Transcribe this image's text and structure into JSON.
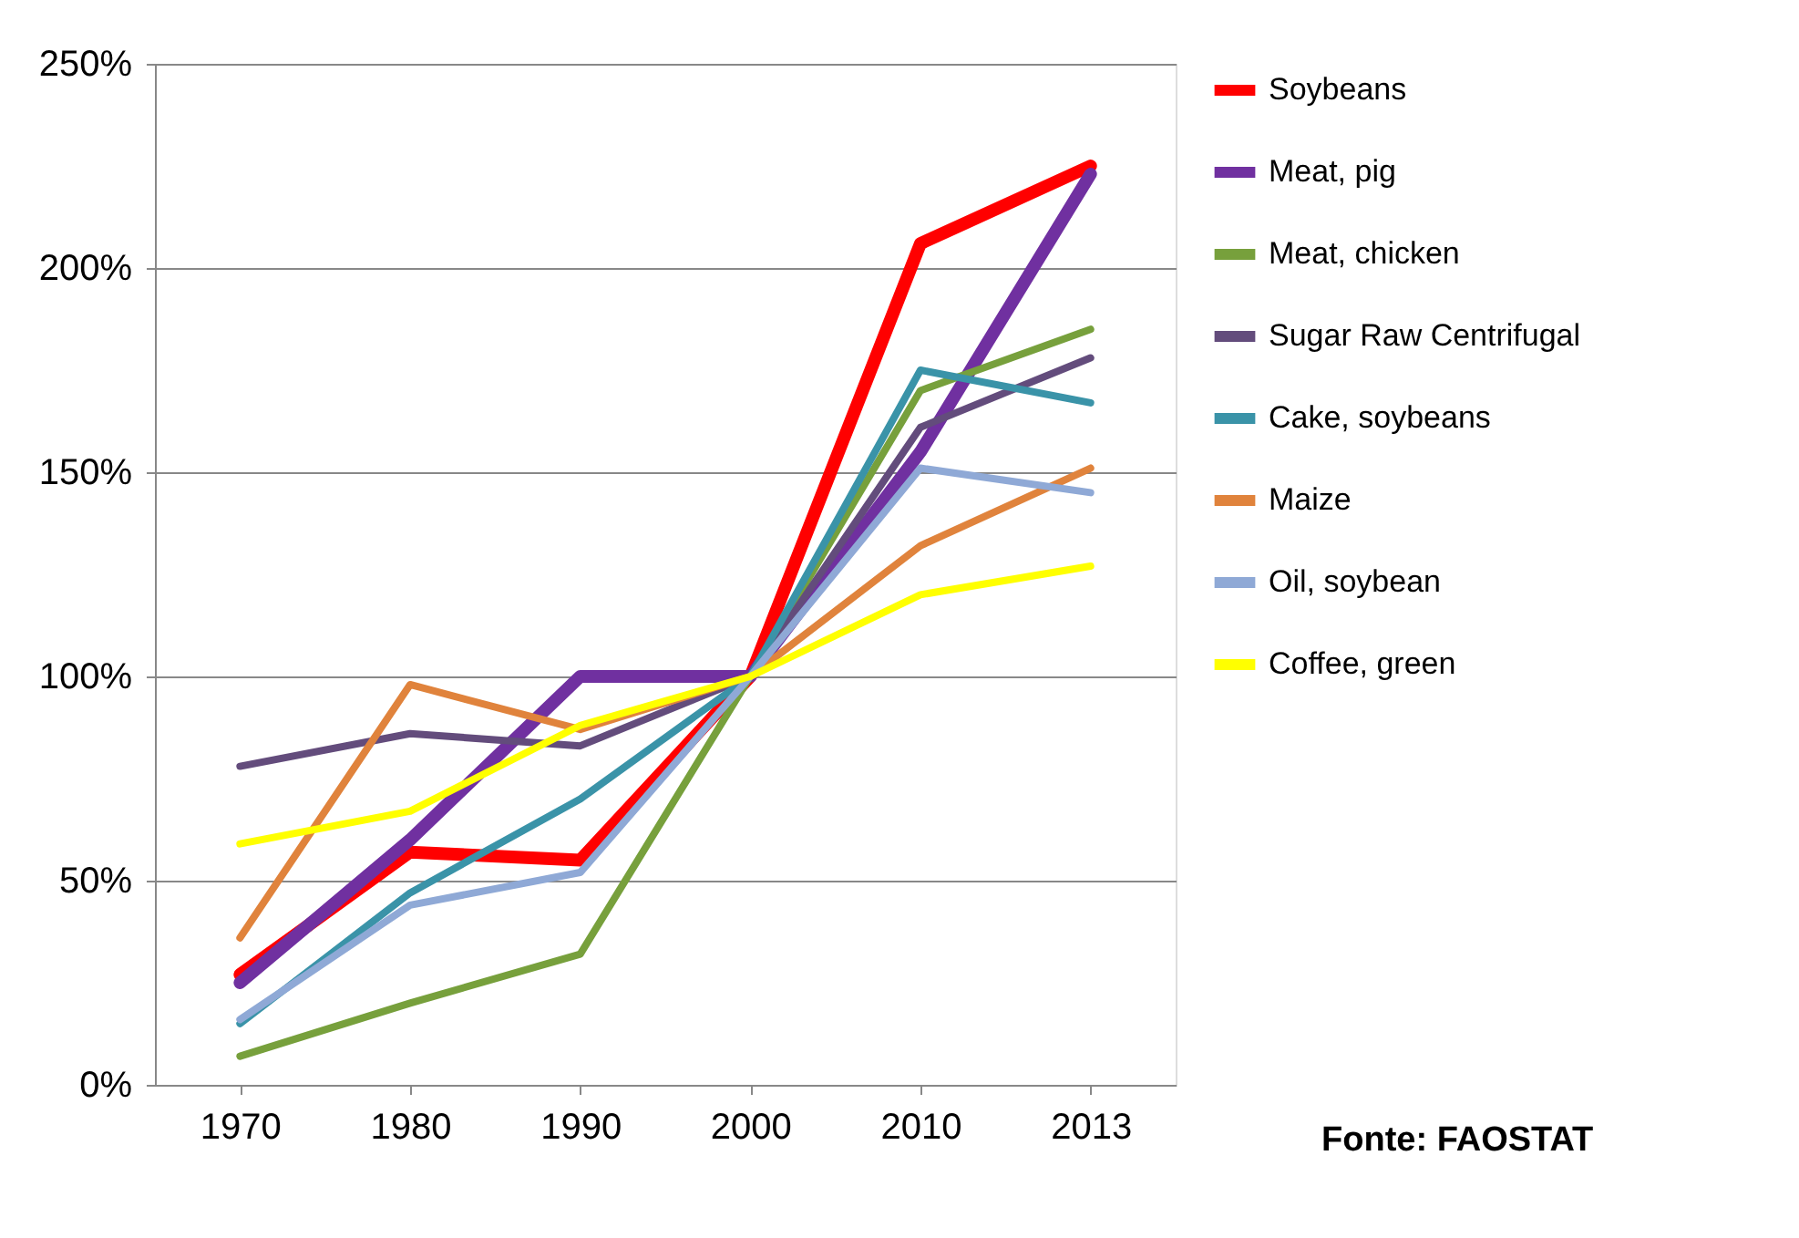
{
  "chart_data": {
    "type": "line",
    "categories": [
      "1970",
      "1980",
      "1990",
      "2000",
      "2010",
      "2013"
    ],
    "ylim": [
      0,
      250
    ],
    "yticks": [
      {
        "value": 0,
        "label": "0%"
      },
      {
        "value": 50,
        "label": "50%"
      },
      {
        "value": 100,
        "label": "100%"
      },
      {
        "value": 150,
        "label": "150%"
      },
      {
        "value": 200,
        "label": "200%"
      },
      {
        "value": 250,
        "label": "250%"
      }
    ],
    "grid": "y",
    "legend": "right",
    "marker": "none",
    "line_style": "solid",
    "annotations": [
      "Fonte: FAOSTAT"
    ],
    "series": [
      {
        "name": "Soybeans",
        "color": "#ff0000",
        "values": [
          27,
          57,
          55,
          100,
          206,
          225
        ]
      },
      {
        "name": "Meat, pig",
        "color": "#7030a0",
        "values": [
          25,
          60,
          100,
          100,
          155,
          223
        ]
      },
      {
        "name": "Meat, chicken",
        "color": "#77a03c",
        "values": [
          7,
          20,
          32,
          100,
          170,
          185
        ]
      },
      {
        "name": "Sugar Raw Centrifugal",
        "color": "#634c7c",
        "values": [
          78,
          86,
          83,
          100,
          161,
          178
        ]
      },
      {
        "name": "Cake, soybeans",
        "color": "#3a93a8",
        "values": [
          15,
          47,
          70,
          100,
          175,
          167
        ]
      },
      {
        "name": "Maize",
        "color": "#e0833c",
        "values": [
          36,
          98,
          87,
          100,
          132,
          151
        ]
      },
      {
        "name": "Oil, soybean",
        "color": "#8fa9d6",
        "values": [
          16,
          44,
          52,
          100,
          151,
          145
        ]
      },
      {
        "name": "Coffee, green",
        "color": "#ffff00",
        "values": [
          59,
          67,
          88,
          100,
          120,
          127
        ]
      }
    ]
  }
}
